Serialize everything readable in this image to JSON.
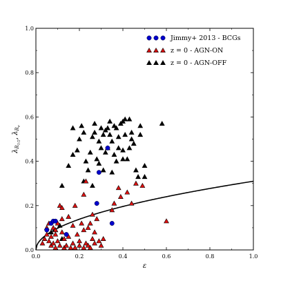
{
  "chart_data": {
    "type": "scatter",
    "xlabel": "ε",
    "ylabel": "λ",
    "ylabel_sub": "R",
    "ylabel_subsub": "1/2",
    "ylabel_sep": ", ",
    "ylabel_sub2": "R",
    "ylabel_subsub2": "e",
    "xlim": [
      0.0,
      1.0
    ],
    "ylim": [
      0.0,
      1.0
    ],
    "xticks": [
      "0.0",
      "0.2",
      "0.4",
      "0.6",
      "0.8",
      "1.0"
    ],
    "yticks": [
      "0.0",
      "0.2",
      "0.4",
      "0.6",
      "0.8",
      "1.0"
    ],
    "xtick_values": [
      0.0,
      0.2,
      0.4,
      0.6,
      0.8,
      1.0
    ],
    "ytick_values": [
      0.0,
      0.2,
      0.4,
      0.6,
      0.8,
      1.0
    ],
    "legend_position": "top-right",
    "grid": false,
    "curve": {
      "description": "lambda = 0.31 * sqrt(epsilon)",
      "coefficient": 0.31
    },
    "series": [
      {
        "name": "Jimmy+ 2013 - BCGs",
        "marker": "circle",
        "color": "#0000cc",
        "points": [
          [
            0.05,
            0.09
          ],
          [
            0.07,
            0.12
          ],
          [
            0.08,
            0.13
          ],
          [
            0.09,
            0.13
          ],
          [
            0.14,
            0.07
          ],
          [
            0.28,
            0.21
          ],
          [
            0.29,
            0.35
          ],
          [
            0.33,
            0.46
          ],
          [
            0.35,
            0.12
          ]
        ]
      },
      {
        "name": "z = 0 - AGN-ON",
        "marker": "triangle",
        "color": "#dd1111",
        "points": [
          [
            0.03,
            0.03
          ],
          [
            0.04,
            0.05
          ],
          [
            0.05,
            0.1
          ],
          [
            0.06,
            0.12
          ],
          [
            0.06,
            0.04
          ],
          [
            0.07,
            0.06
          ],
          [
            0.07,
            0.02
          ],
          [
            0.08,
            0.1
          ],
          [
            0.08,
            0.03
          ],
          [
            0.09,
            0.07
          ],
          [
            0.09,
            0.01
          ],
          [
            0.1,
            0.04
          ],
          [
            0.1,
            0.12
          ],
          [
            0.11,
            0.2
          ],
          [
            0.11,
            0.02
          ],
          [
            0.12,
            0.19
          ],
          [
            0.12,
            0.08
          ],
          [
            0.13,
            0.01
          ],
          [
            0.13,
            0.05
          ],
          [
            0.14,
            0.02
          ],
          [
            0.15,
            0.06
          ],
          [
            0.16,
            0.01
          ],
          [
            0.17,
            0.11
          ],
          [
            0.17,
            0.03
          ],
          [
            0.18,
            0.2
          ],
          [
            0.18,
            0.01
          ],
          [
            0.19,
            0.07
          ],
          [
            0.2,
            0.04
          ],
          [
            0.2,
            0.02
          ],
          [
            0.21,
            0.12
          ],
          [
            0.22,
            0.09
          ],
          [
            0.22,
            0.01
          ],
          [
            0.23,
            0.03
          ],
          [
            0.24,
            0.1
          ],
          [
            0.24,
            0.02
          ],
          [
            0.25,
            0.12
          ],
          [
            0.25,
            0.01
          ],
          [
            0.26,
            0.05
          ],
          [
            0.27,
            0.08
          ],
          [
            0.27,
            0.03
          ],
          [
            0.28,
            0.14
          ],
          [
            0.29,
            0.04
          ],
          [
            0.3,
            0.02
          ],
          [
            0.31,
            0.05
          ],
          [
            0.22,
            0.25
          ],
          [
            0.23,
            0.31
          ],
          [
            0.35,
            0.18
          ],
          [
            0.36,
            0.21
          ],
          [
            0.38,
            0.28
          ],
          [
            0.39,
            0.24
          ],
          [
            0.42,
            0.26
          ],
          [
            0.44,
            0.21
          ],
          [
            0.46,
            0.3
          ],
          [
            0.49,
            0.29
          ],
          [
            0.6,
            0.13
          ],
          [
            0.15,
            0.15
          ],
          [
            0.12,
            0.14
          ],
          [
            0.05,
            0.07
          ],
          [
            0.09,
            0.09
          ],
          [
            0.26,
            0.16
          ]
        ]
      },
      {
        "name": "z = 0 - AGN-OFF",
        "marker": "triangle",
        "color": "#000000",
        "points": [
          [
            0.07,
            0.08
          ],
          [
            0.09,
            0.09
          ],
          [
            0.11,
            0.11
          ],
          [
            0.12,
            0.05
          ],
          [
            0.12,
            0.29
          ],
          [
            0.15,
            0.38
          ],
          [
            0.17,
            0.43
          ],
          [
            0.19,
            0.45
          ],
          [
            0.17,
            0.55
          ],
          [
            0.2,
            0.5
          ],
          [
            0.21,
            0.56
          ],
          [
            0.22,
            0.53
          ],
          [
            0.23,
            0.4
          ],
          [
            0.24,
            0.36
          ],
          [
            0.25,
            0.44
          ],
          [
            0.26,
            0.51
          ],
          [
            0.27,
            0.53
          ],
          [
            0.27,
            0.57
          ],
          [
            0.28,
            0.41
          ],
          [
            0.29,
            0.49
          ],
          [
            0.3,
            0.46
          ],
          [
            0.3,
            0.55
          ],
          [
            0.31,
            0.52
          ],
          [
            0.32,
            0.54
          ],
          [
            0.32,
            0.44
          ],
          [
            0.33,
            0.46
          ],
          [
            0.33,
            0.55
          ],
          [
            0.34,
            0.52
          ],
          [
            0.34,
            0.58
          ],
          [
            0.35,
            0.35
          ],
          [
            0.35,
            0.49
          ],
          [
            0.36,
            0.43
          ],
          [
            0.36,
            0.56
          ],
          [
            0.37,
            0.4
          ],
          [
            0.38,
            0.46
          ],
          [
            0.38,
            0.51
          ],
          [
            0.39,
            0.57
          ],
          [
            0.4,
            0.45
          ],
          [
            0.4,
            0.41
          ],
          [
            0.41,
            0.52
          ],
          [
            0.41,
            0.59
          ],
          [
            0.42,
            0.41
          ],
          [
            0.43,
            0.46
          ],
          [
            0.43,
            0.59
          ],
          [
            0.44,
            0.53
          ],
          [
            0.45,
            0.48
          ],
          [
            0.46,
            0.36
          ],
          [
            0.47,
            0.33
          ],
          [
            0.48,
            0.52
          ],
          [
            0.48,
            0.56
          ],
          [
            0.5,
            0.38
          ],
          [
            0.5,
            0.33
          ],
          [
            0.58,
            0.57
          ],
          [
            0.26,
            0.29
          ],
          [
            0.22,
            0.31
          ],
          [
            0.29,
            0.39
          ],
          [
            0.31,
            0.36
          ],
          [
            0.37,
            0.55
          ],
          [
            0.4,
            0.58
          ],
          [
            0.44,
            0.5
          ]
        ]
      }
    ]
  }
}
